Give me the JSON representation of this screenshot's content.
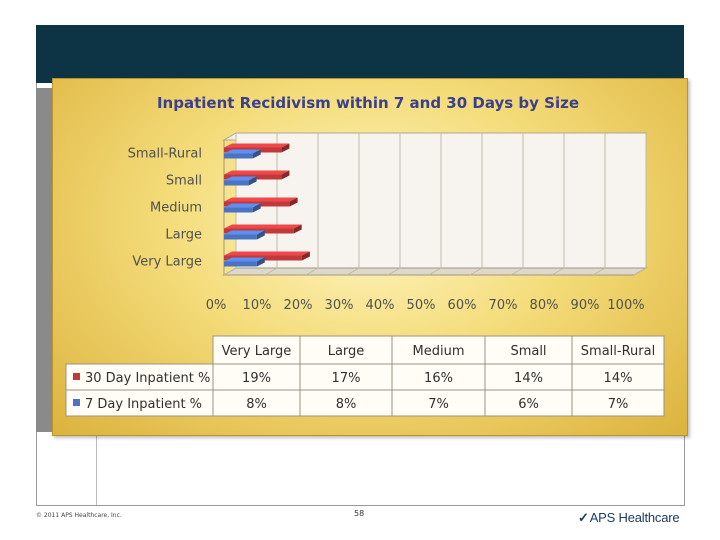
{
  "slide": {
    "copyright": "© 2011 APS Healthcare, Inc.",
    "page_number": "58",
    "logo_text": "APS Healthcare",
    "logo_mark": "✓"
  },
  "colors": {
    "series_30": "#c0393b",
    "series_7": "#4a73c2",
    "title": "#3a3f8f",
    "header_band": "#0c3444"
  },
  "chart_data": {
    "type": "bar",
    "orientation": "horizontal",
    "title": "Inpatient Recidivism within 7 and 30 Days by Size",
    "categories": [
      "Small-Rural",
      "Small",
      "Medium",
      "Large",
      "Very Large"
    ],
    "x_ticks": [
      "0%",
      "10%",
      "20%",
      "30%",
      "40%",
      "50%",
      "60%",
      "70%",
      "80%",
      "90%",
      "100%"
    ],
    "xlim": [
      0,
      100
    ],
    "grid": true,
    "series": [
      {
        "name": "30 Day Inpatient %",
        "values": [
          14,
          14,
          16,
          17,
          19
        ]
      },
      {
        "name": "7 Day Inpatient %",
        "values": [
          7,
          6,
          7,
          8,
          8
        ]
      }
    ],
    "table": {
      "columns": [
        "Very Large",
        "Large",
        "Medium",
        "Small",
        "Small-Rural"
      ],
      "rows": [
        {
          "label": "30 Day Inpatient %",
          "values": [
            "19%",
            "17%",
            "16%",
            "14%",
            "14%"
          ]
        },
        {
          "label": "7 Day Inpatient %",
          "values": [
            "8%",
            "8%",
            "7%",
            "6%",
            "7%"
          ]
        }
      ]
    }
  }
}
